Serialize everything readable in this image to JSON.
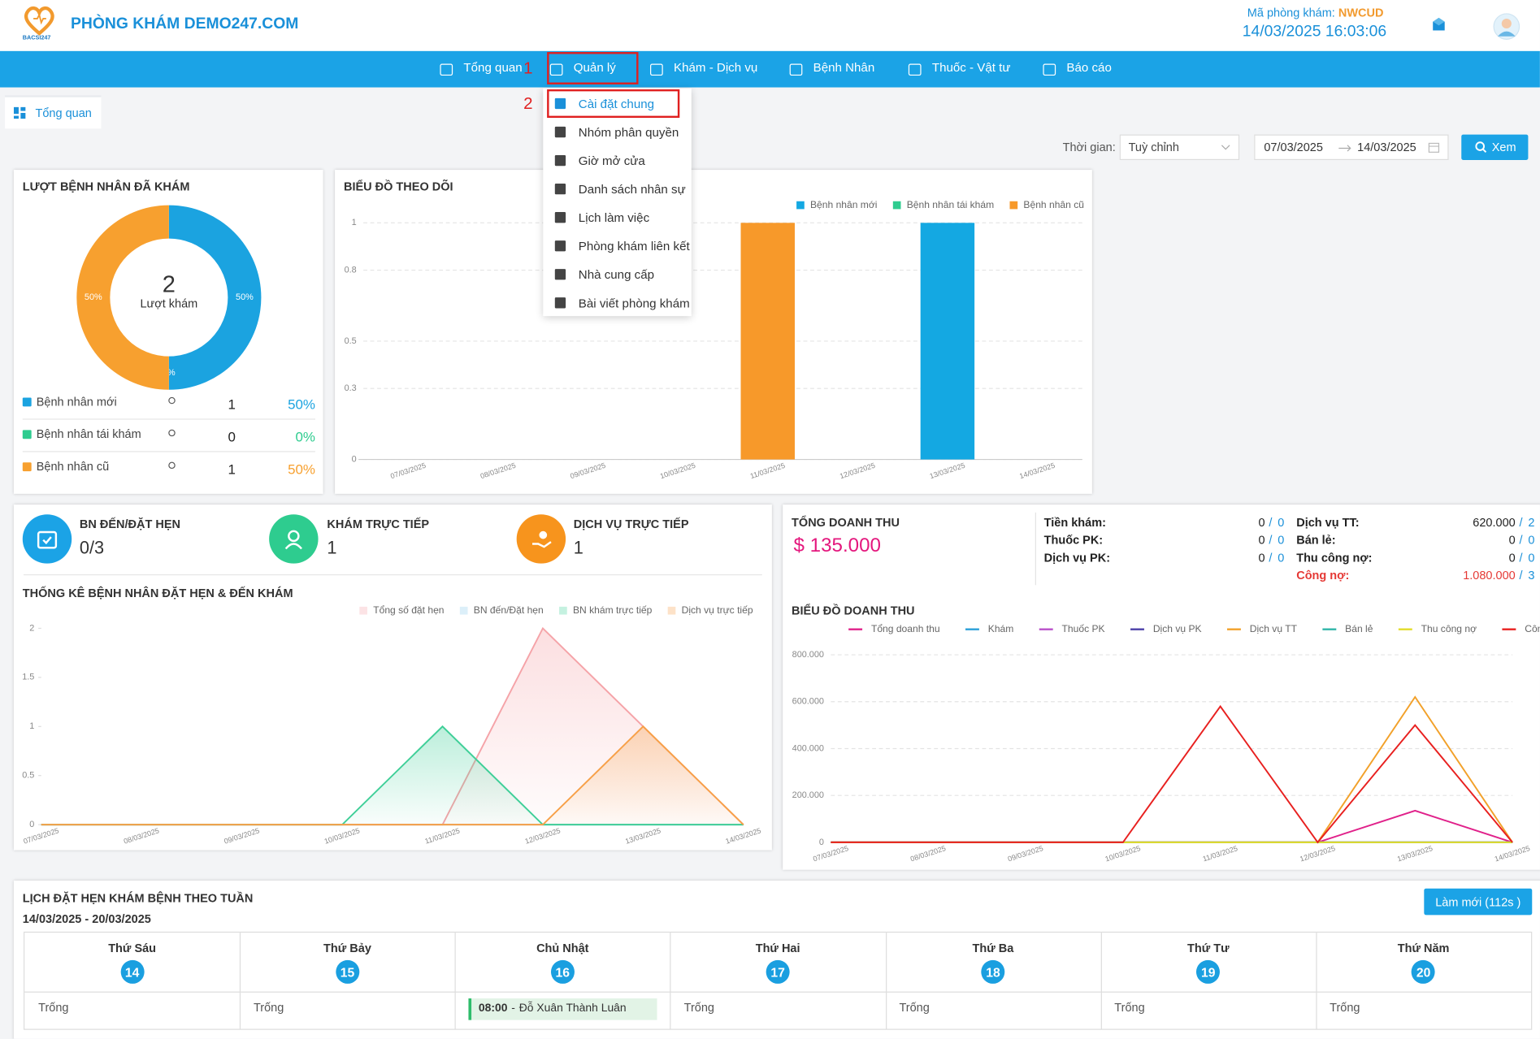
{
  "header": {
    "logo_text": "BACSI247",
    "clinic_name": "PHÒNG KHÁM DEMO247.COM",
    "code_label": "Mã phòng khám:",
    "code": "NWCUD",
    "datetime": "14/03/2025 16:03:06"
  },
  "nav": {
    "items": [
      "Tổng quan",
      "Quản lý",
      "Khám - Dịch vụ",
      "Bệnh Nhân",
      "Thuốc - Vật tư",
      "Báo cáo"
    ]
  },
  "annotations": [
    "1",
    "2"
  ],
  "dropdown": {
    "items": [
      "Cài đặt chung",
      "Nhóm phân quyền",
      "Giờ mở cửa",
      "Danh sách nhân sự",
      "Lịch làm việc",
      "Phòng khám liên kết",
      "Nhà cung cấp",
      "Bài viết phòng khám"
    ]
  },
  "tab": "Tổng quan",
  "filter": {
    "label": "Thời gian:",
    "mode": "Tuỳ chỉnh",
    "date_from": "07/03/2025",
    "date_to": "14/03/2025",
    "button": "Xem"
  },
  "stats": [
    {
      "title": "BN ĐẾN/ĐẶT HẸN",
      "value": "0/3"
    },
    {
      "title": "KHÁM TRỰC TIẾP",
      "value": 1
    },
    {
      "title": "DỊCH VỤ TRỰC TIẾP",
      "value": 1
    }
  ],
  "revenue_summary": {
    "title": "TỔNG DOANH THU",
    "currency": "$",
    "total": "135.000",
    "separator": "/",
    "items": [
      {
        "label": "Tiền khám:",
        "amount": "0",
        "count": 0
      },
      {
        "label": "Thuốc PK:",
        "amount": "0",
        "count": 0
      },
      {
        "label": "Dịch vụ PK:",
        "amount": "0",
        "count": 0
      },
      {
        "label": "Dịch vụ TT:",
        "amount": "620.000",
        "count": 2
      },
      {
        "label": "Bán lẻ:",
        "amount": "0",
        "count": 0
      },
      {
        "label": "Thu công nợ:",
        "amount": "0",
        "count": 0
      },
      {
        "label": "Công nợ:",
        "amount": "1.080.000",
        "count": 3,
        "color": "#e53935"
      }
    ]
  },
  "schedule": {
    "title": "LỊCH ĐẶT HẸN KHÁM BỆNH THEO TUẦN",
    "range": "14/03/2025 - 20/03/2025",
    "button": "Làm mới (112s )",
    "empty_label": "Trống",
    "time_separator": "-",
    "days": [
      {
        "name": "Thứ Sáu",
        "date": 14
      },
      {
        "name": "Thứ Bảy",
        "date": 15
      },
      {
        "name": "Chủ Nhật",
        "date": 16,
        "appointments": [
          {
            "time": "08:00",
            "patient": "Đỗ Xuân Thành Luân"
          }
        ]
      },
      {
        "name": "Thứ Hai",
        "date": 17
      },
      {
        "name": "Thứ Ba",
        "date": 18
      },
      {
        "name": "Thứ Tư",
        "date": 19
      },
      {
        "name": "Thứ Năm",
        "date": 20
      }
    ]
  },
  "chart_data": [
    {
      "type": "pie",
      "title": "LƯỢT BỆNH NHÂN ĐÃ KHÁM",
      "categories": [
        "Bệnh nhân mới",
        "Bệnh nhân tái khám",
        "Bệnh nhân cũ"
      ],
      "values": [
        50,
        0,
        50
      ],
      "value_labels": [
        "50%",
        "0%",
        "50%"
      ],
      "colors": [
        "#1ba3e0",
        "#2ecc8f",
        "#f7a02f"
      ],
      "counts": [
        1,
        0,
        1
      ],
      "center_value": 2,
      "center_label": "Lượt khám",
      "donut": true
    },
    {
      "type": "bar",
      "title": "BIỂU ĐỒ THEO DÕI",
      "categories": [
        "07/03/2025",
        "08/03/2025",
        "09/03/2025",
        "10/03/2025",
        "11/03/2025",
        "12/03/2025",
        "13/03/2025",
        "14/03/2025"
      ],
      "series": [
        {
          "name": "Bệnh nhân mới",
          "color": "#14a8e2",
          "values": [
            0,
            0,
            0,
            0,
            0,
            0,
            1,
            0
          ]
        },
        {
          "name": "Bệnh nhân tái khám",
          "color": "#2ecc8f",
          "values": [
            0,
            0,
            0,
            0,
            0,
            0,
            0,
            0
          ]
        },
        {
          "name": "Bệnh nhân cũ",
          "color": "#f7992a",
          "values": [
            0,
            0,
            0,
            0,
            1,
            0,
            0,
            0
          ]
        }
      ],
      "ylim": [
        0,
        1
      ],
      "yticks": [
        0,
        0.3,
        0.5,
        0.8,
        1
      ],
      "grid": true,
      "stacked": true,
      "legend": "top-right"
    },
    {
      "type": "line",
      "title": "THỐNG KÊ BỆNH NHÂN ĐẶT HẸN & ĐẾN KHÁM",
      "categories": [
        "07/03/2025",
        "08/03/2025",
        "09/03/2025",
        "10/03/2025",
        "11/03/2025",
        "12/03/2025",
        "13/03/2025",
        "14/03/2025"
      ],
      "series": [
        {
          "name": "Tổng số đặt hẹn",
          "color": "#f5a3a8",
          "values": [
            0,
            0,
            0,
            0,
            0,
            2,
            1,
            0
          ]
        },
        {
          "name": "BN đến/Đặt hẹn",
          "color": "#8ccbec",
          "values": [
            0,
            0,
            0,
            0,
            0,
            0,
            0,
            0
          ]
        },
        {
          "name": "BN khám trực tiếp",
          "color": "#3fcf98",
          "values": [
            0,
            0,
            0,
            0,
            1,
            0,
            0,
            0
          ]
        },
        {
          "name": "Dịch vụ trực tiếp",
          "color": "#f7a048",
          "values": [
            0,
            0,
            0,
            0,
            0,
            0,
            1,
            0
          ]
        }
      ],
      "ylim": [
        0,
        2
      ],
      "yticks": [
        0,
        0.5,
        1,
        1.5,
        2
      ],
      "grid": false,
      "area": true,
      "legend": "top-right"
    },
    {
      "type": "line",
      "title": "BIỂU ĐỒ DOANH THU",
      "categories": [
        "07/03/2025",
        "08/03/2025",
        "09/03/2025",
        "10/03/2025",
        "11/03/2025",
        "12/03/2025",
        "13/03/2025",
        "14/03/2025"
      ],
      "series": [
        {
          "name": "Tổng doanh thu",
          "color": "#e0218a",
          "values": [
            0,
            0,
            0,
            0,
            0,
            0,
            135000,
            0
          ]
        },
        {
          "name": "Khám",
          "color": "#2a9fd8",
          "values": [
            0,
            0,
            0,
            0,
            0,
            0,
            0,
            0
          ]
        },
        {
          "name": "Thuốc PK",
          "color": "#b84fc9",
          "values": [
            0,
            0,
            0,
            0,
            0,
            0,
            0,
            0
          ]
        },
        {
          "name": "Dịch vụ PK",
          "color": "#4b3fa8",
          "values": [
            0,
            0,
            0,
            0,
            0,
            0,
            0,
            0
          ]
        },
        {
          "name": "Dịch vụ TT",
          "color": "#f2a12a",
          "values": [
            0,
            0,
            0,
            0,
            0,
            0,
            620000,
            0
          ]
        },
        {
          "name": "Bán lẻ",
          "color": "#2fb5a8",
          "values": [
            0,
            0,
            0,
            0,
            0,
            0,
            0,
            0
          ]
        },
        {
          "name": "Thu công nợ",
          "color": "#e3dc2a",
          "values": [
            0,
            0,
            0,
            0,
            0,
            0,
            0,
            0
          ]
        },
        {
          "name": "Công nợ",
          "color": "#e8201f",
          "values": [
            0,
            0,
            0,
            0,
            580000,
            0,
            500000,
            0
          ]
        }
      ],
      "ylim": [
        0,
        800000
      ],
      "yticks": [
        0,
        {
          "value": 200000,
          "label": "200.000"
        },
        {
          "value": 400000,
          "label": "400.000"
        },
        {
          "value": 600000,
          "label": "600.000"
        },
        {
          "value": 800000,
          "label": "800.000"
        }
      ],
      "grid": true,
      "area": false,
      "legend": "top-left"
    }
  ]
}
